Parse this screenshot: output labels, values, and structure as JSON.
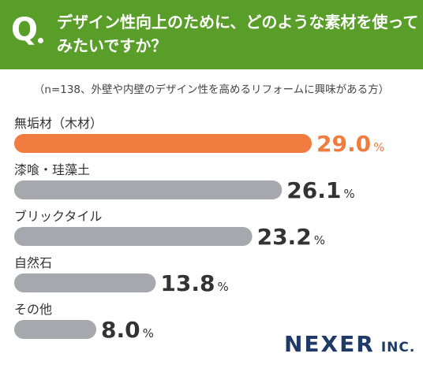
{
  "header": {
    "q_mark": "Q",
    "question": "デザイン性向上のために、どのような素材を使ってみたいですか？"
  },
  "note": "（n=138、外壁や内壁のデザイン性を高めるリフォームに興味がある方）",
  "brand": {
    "name": "NEXER",
    "suffix": "INC."
  },
  "colors": {
    "header": "#5a9e2a",
    "highlight": "#f07c3f",
    "bar": "#a7a8ad",
    "text": "#333333"
  },
  "chart_data": {
    "type": "bar",
    "orientation": "horizontal",
    "unit": "%",
    "categories": [
      "無垢材（木材）",
      "漆喰・珪藻土",
      "ブリックタイル",
      "自然石",
      "その他"
    ],
    "values": [
      29.0,
      26.1,
      23.2,
      13.8,
      8.0
    ],
    "value_labels": [
      "29.0",
      "26.1",
      "23.2",
      "13.8",
      "8.0"
    ],
    "highlight_index": 0,
    "xlim": [
      0,
      30
    ]
  }
}
